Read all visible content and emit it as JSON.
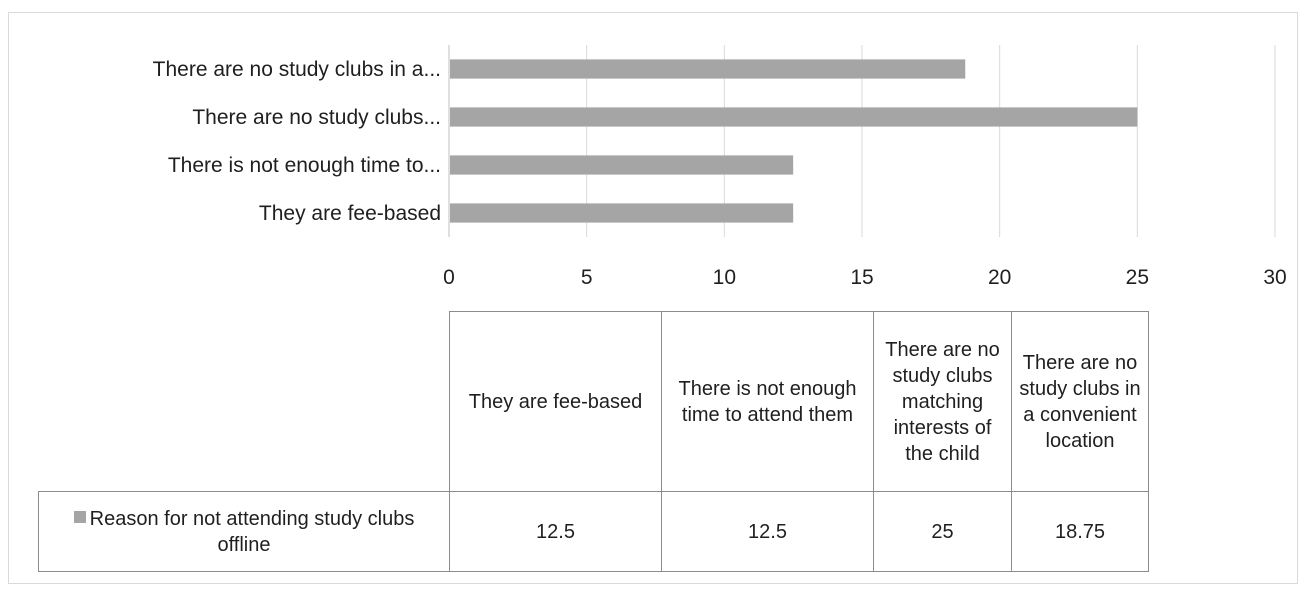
{
  "chart_data": {
    "type": "bar",
    "orientation": "horizontal",
    "categories_axis_labels": [
      "They are fee-based",
      "There is not enough time to...",
      "There are no study clubs...",
      "There are no study clubs in a..."
    ],
    "categories": [
      "They are fee-based",
      "There is not enough time to attend them",
      "There are no study clubs matching interests of the child",
      "There are no study clubs in a convenient location"
    ],
    "series": [
      {
        "name": "Reason for not attending study clubs offline",
        "values": [
          12.5,
          12.5,
          25,
          18.75
        ],
        "value_labels": [
          "12.5",
          "12.5",
          "25",
          "18.75"
        ]
      }
    ],
    "xlim": [
      0,
      30
    ],
    "xticks": [
      0,
      5,
      10,
      15,
      20,
      25,
      30
    ],
    "grid": true,
    "legend_placement": "data-table",
    "bar_color": "#a5a5a5",
    "grid_color": "#d9d9d9"
  }
}
